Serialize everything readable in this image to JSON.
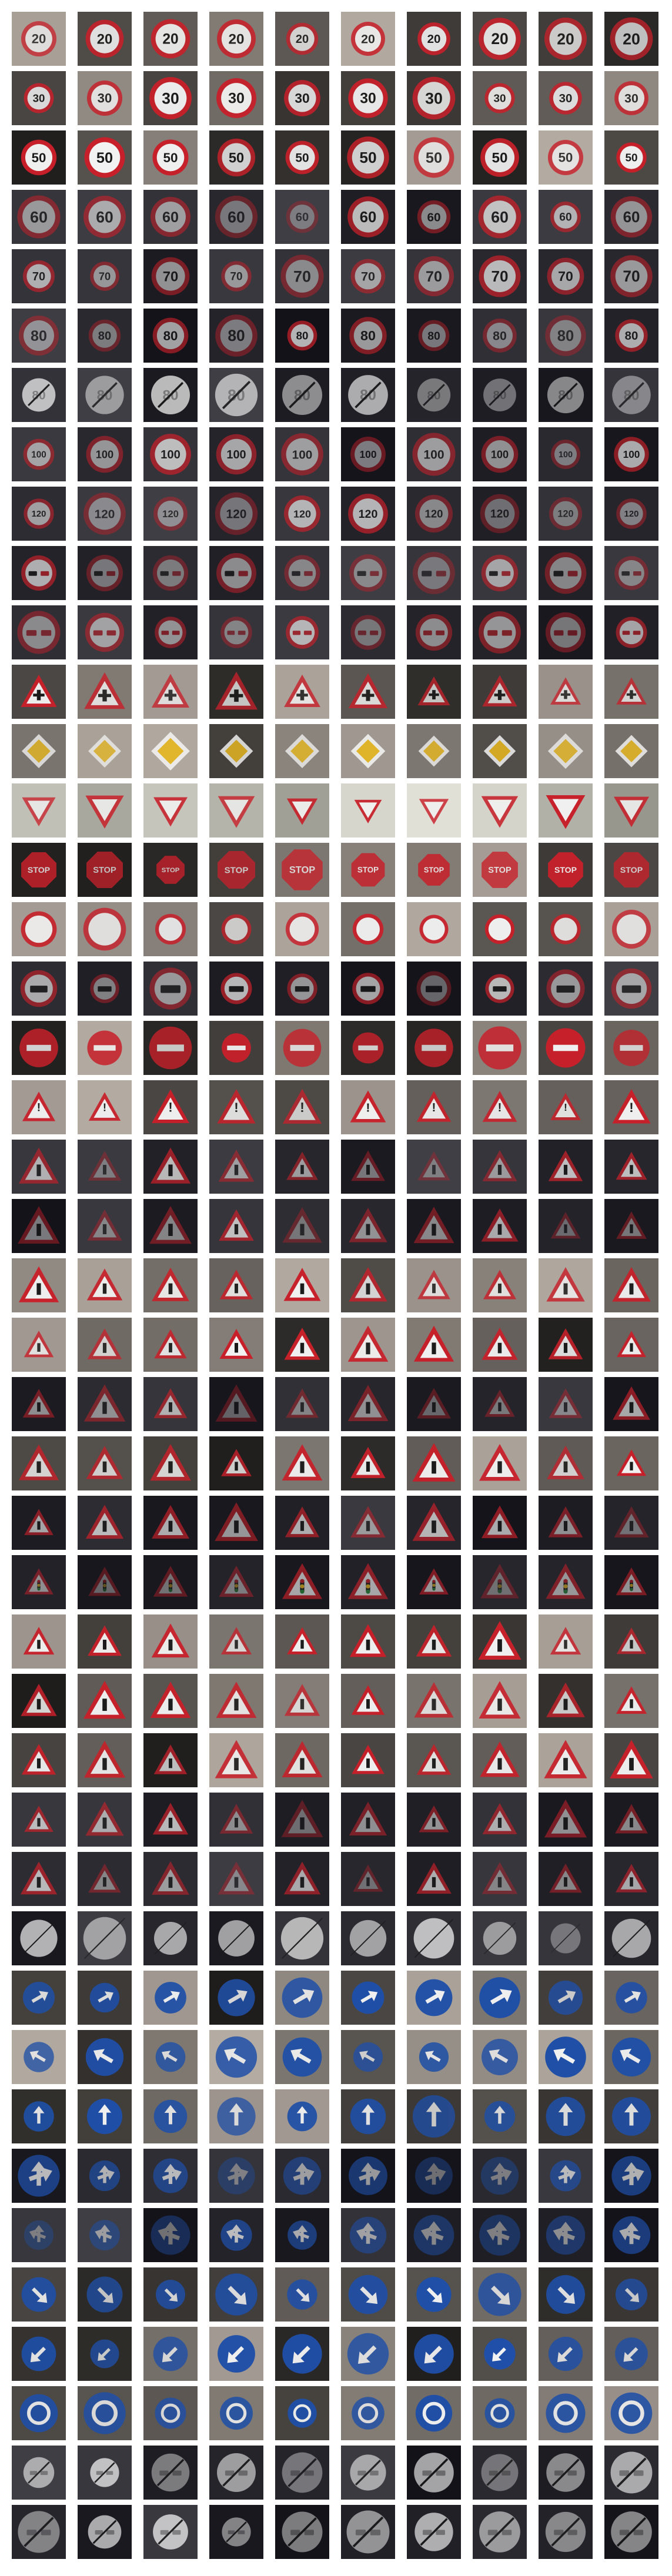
{
  "gallery": {
    "columns": 10,
    "rows": [
      {
        "sign": "speed-limit-20-sign-icon",
        "label": "20",
        "tone": "dim"
      },
      {
        "sign": "speed-limit-30-sign-icon",
        "label": "30",
        "tone": "mixed"
      },
      {
        "sign": "speed-limit-50-sign-icon",
        "label": "50",
        "tone": "mixed"
      },
      {
        "sign": "speed-limit-60-sign-icon",
        "label": "60",
        "tone": "dark"
      },
      {
        "sign": "speed-limit-70-sign-icon",
        "label": "70",
        "tone": "dark"
      },
      {
        "sign": "speed-limit-80-sign-icon",
        "label": "80",
        "tone": "dark"
      },
      {
        "sign": "end-speed-limit-80-sign-icon",
        "label": "80",
        "tone": "dark"
      },
      {
        "sign": "speed-limit-100-sign-icon",
        "label": "100",
        "tone": "dark"
      },
      {
        "sign": "speed-limit-120-sign-icon",
        "label": "120",
        "tone": "dark"
      },
      {
        "sign": "no-overtaking-sign-icon",
        "label": "",
        "tone": "dark"
      },
      {
        "sign": "no-overtaking-trucks-sign-icon",
        "label": "",
        "tone": "dark"
      },
      {
        "sign": "right-of-way-intersection-sign-icon",
        "label": "",
        "tone": "mixed"
      },
      {
        "sign": "priority-road-sign-icon",
        "label": "",
        "tone": "mixed"
      },
      {
        "sign": "yield-sign-icon",
        "label": "",
        "tone": "bright"
      },
      {
        "sign": "stop-sign-icon",
        "label": "STOP",
        "tone": "mixed"
      },
      {
        "sign": "no-vehicles-sign-icon",
        "label": "",
        "tone": "mixed"
      },
      {
        "sign": "no-trucks-sign-icon",
        "label": "",
        "tone": "dark"
      },
      {
        "sign": "no-entry-sign-icon",
        "label": "",
        "tone": "mixed"
      },
      {
        "sign": "general-caution-sign-icon",
        "label": "!",
        "tone": "mixed"
      },
      {
        "sign": "dangerous-curve-left-sign-icon",
        "label": "",
        "tone": "dark"
      },
      {
        "sign": "dangerous-curve-right-sign-icon",
        "label": "",
        "tone": "dark"
      },
      {
        "sign": "double-curve-sign-icon",
        "label": "",
        "tone": "mixed"
      },
      {
        "sign": "bumpy-road-sign-icon",
        "label": "",
        "tone": "mixed"
      },
      {
        "sign": "slippery-road-sign-icon",
        "label": "",
        "tone": "dark"
      },
      {
        "sign": "road-narrows-sign-icon",
        "label": "",
        "tone": "mixed"
      },
      {
        "sign": "road-work-sign-icon",
        "label": "",
        "tone": "dark"
      },
      {
        "sign": "traffic-signals-sign-icon",
        "label": "",
        "tone": "dark"
      },
      {
        "sign": "pedestrians-sign-icon",
        "label": "",
        "tone": "mixed"
      },
      {
        "sign": "children-crossing-sign-icon",
        "label": "",
        "tone": "mixed"
      },
      {
        "sign": "bicycles-crossing-sign-icon",
        "label": "",
        "tone": "mixed"
      },
      {
        "sign": "ice-snow-sign-icon",
        "label": "",
        "tone": "dark"
      },
      {
        "sign": "wild-animals-crossing-sign-icon",
        "label": "",
        "tone": "dark"
      },
      {
        "sign": "end-of-all-limits-sign-icon",
        "label": "",
        "tone": "dark"
      },
      {
        "sign": "turn-right-ahead-sign-icon",
        "label": "",
        "tone": "mixed"
      },
      {
        "sign": "turn-left-ahead-sign-icon",
        "label": "",
        "tone": "mixed"
      },
      {
        "sign": "ahead-only-sign-icon",
        "label": "",
        "tone": "mixed"
      },
      {
        "sign": "go-straight-or-right-sign-icon",
        "label": "",
        "tone": "dark"
      },
      {
        "sign": "go-straight-or-left-sign-icon",
        "label": "",
        "tone": "dark"
      },
      {
        "sign": "keep-right-sign-icon",
        "label": "",
        "tone": "mixed"
      },
      {
        "sign": "keep-left-sign-icon",
        "label": "",
        "tone": "mixed"
      },
      {
        "sign": "roundabout-sign-icon",
        "label": "",
        "tone": "mixed"
      },
      {
        "sign": "end-no-overtaking-sign-icon",
        "label": "",
        "tone": "dark"
      },
      {
        "sign": "end-no-overtaking-trucks-sign-icon",
        "label": "",
        "tone": "dark"
      }
    ]
  },
  "colors": {
    "red": "#c8202a",
    "blue": "#1f4fa8",
    "white": "#f2f2f2",
    "yellow": "#e8b820",
    "gray": "#9a9a9a",
    "ink": "#1a1a1a"
  }
}
